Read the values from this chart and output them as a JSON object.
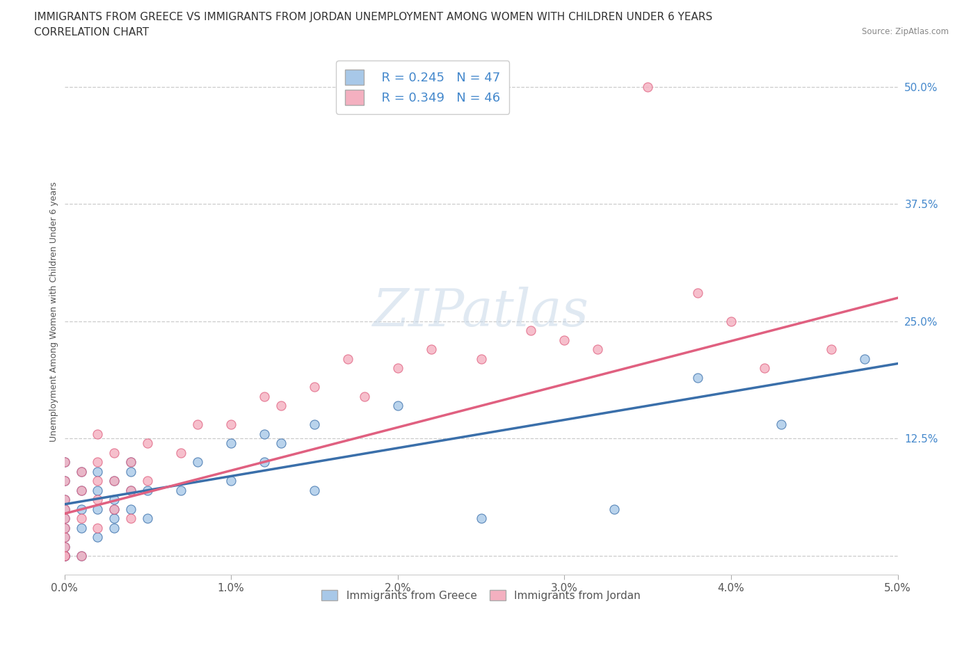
{
  "title_line1": "IMMIGRANTS FROM GREECE VS IMMIGRANTS FROM JORDAN UNEMPLOYMENT AMONG WOMEN WITH CHILDREN UNDER 6 YEARS",
  "title_line2": "CORRELATION CHART",
  "source": "Source: ZipAtlas.com",
  "ylabel": "Unemployment Among Women with Children Under 6 years",
  "xlim": [
    0.0,
    0.05
  ],
  "ylim": [
    -0.02,
    0.54
  ],
  "xticks": [
    0.0,
    0.01,
    0.02,
    0.03,
    0.04,
    0.05
  ],
  "xtick_labels": [
    "0.0%",
    "1.0%",
    "2.0%",
    "3.0%",
    "4.0%",
    "5.0%"
  ],
  "yticks": [
    0.0,
    0.125,
    0.25,
    0.375,
    0.5
  ],
  "ytick_labels": [
    "",
    "12.5%",
    "25.0%",
    "37.5%",
    "50.0%"
  ],
  "grid_color": "#cccccc",
  "background_color": "#ffffff",
  "legend_R1": "R = 0.245",
  "legend_N1": "N = 47",
  "legend_R2": "R = 0.349",
  "legend_N2": "N = 46",
  "color_greece": "#a8c8e8",
  "color_jordan": "#f4b0c0",
  "line_color_greece": "#3a6faa",
  "line_color_jordan": "#e06080",
  "tick_color": "#4488cc",
  "title_fontsize": 11,
  "axis_label_fontsize": 9,
  "tick_fontsize": 11,
  "greece_x": [
    0.0,
    0.0,
    0.0,
    0.0,
    0.0,
    0.0,
    0.0,
    0.0,
    0.0,
    0.0,
    0.0,
    0.0,
    0.001,
    0.001,
    0.001,
    0.001,
    0.001,
    0.002,
    0.002,
    0.002,
    0.002,
    0.003,
    0.003,
    0.003,
    0.003,
    0.003,
    0.004,
    0.004,
    0.004,
    0.004,
    0.005,
    0.005,
    0.007,
    0.008,
    0.01,
    0.01,
    0.012,
    0.012,
    0.013,
    0.015,
    0.015,
    0.02,
    0.025,
    0.033,
    0.038,
    0.043,
    0.048
  ],
  "greece_y": [
    0.0,
    0.0,
    0.0,
    0.0,
    0.02,
    0.04,
    0.06,
    0.08,
    0.1,
    0.05,
    0.03,
    0.01,
    0.0,
    0.03,
    0.05,
    0.07,
    0.09,
    0.02,
    0.05,
    0.07,
    0.09,
    0.04,
    0.06,
    0.08,
    0.03,
    0.05,
    0.05,
    0.07,
    0.09,
    0.1,
    0.04,
    0.07,
    0.07,
    0.1,
    0.12,
    0.08,
    0.1,
    0.13,
    0.12,
    0.14,
    0.07,
    0.16,
    0.04,
    0.05,
    0.19,
    0.14,
    0.21
  ],
  "jordan_x": [
    0.0,
    0.0,
    0.0,
    0.0,
    0.0,
    0.0,
    0.0,
    0.0,
    0.0,
    0.0,
    0.001,
    0.001,
    0.001,
    0.001,
    0.002,
    0.002,
    0.002,
    0.002,
    0.002,
    0.003,
    0.003,
    0.003,
    0.004,
    0.004,
    0.004,
    0.005,
    0.005,
    0.007,
    0.008,
    0.01,
    0.012,
    0.013,
    0.015,
    0.017,
    0.018,
    0.02,
    0.022,
    0.025,
    0.028,
    0.03,
    0.032,
    0.035,
    0.038,
    0.04,
    0.042,
    0.046
  ],
  "jordan_y": [
    0.0,
    0.0,
    0.02,
    0.04,
    0.06,
    0.08,
    0.1,
    0.03,
    0.05,
    0.01,
    0.0,
    0.04,
    0.07,
    0.09,
    0.03,
    0.06,
    0.1,
    0.13,
    0.08,
    0.05,
    0.08,
    0.11,
    0.07,
    0.1,
    0.04,
    0.08,
    0.12,
    0.11,
    0.14,
    0.14,
    0.17,
    0.16,
    0.18,
    0.21,
    0.17,
    0.2,
    0.22,
    0.21,
    0.24,
    0.23,
    0.22,
    0.5,
    0.28,
    0.25,
    0.2,
    0.22
  ]
}
